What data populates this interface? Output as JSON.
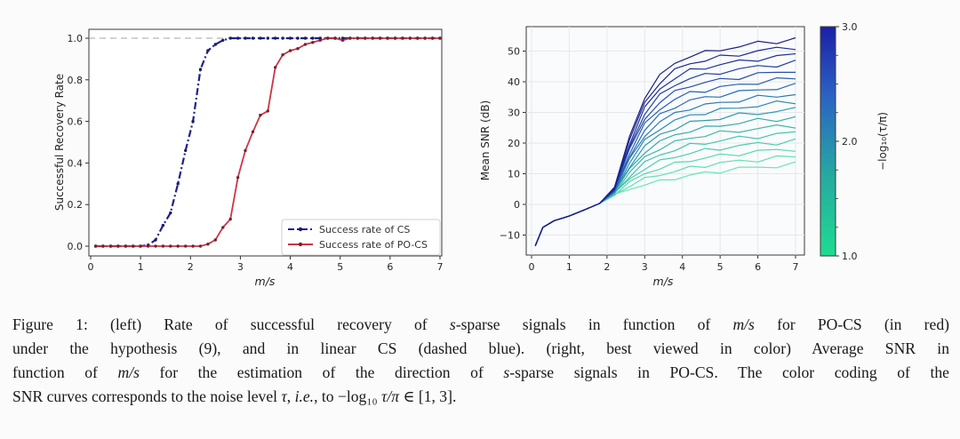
{
  "figure": {
    "caption_lines": [
      [
        {
          "t": "Figure 1:  (left) Rate of successful recovery of "
        },
        {
          "t": "s",
          "i": 1
        },
        {
          "t": "-sparse signals in function of "
        },
        {
          "t": "m/s",
          "i": 1
        },
        {
          "t": " for PO-CS (in red)"
        }
      ],
      [
        {
          "t": "under the hypothesis (9), and in linear CS (dashed blue).  (right, best viewed in color) Average SNR in"
        }
      ],
      [
        {
          "t": "function of "
        },
        {
          "t": "m/s",
          "i": 1
        },
        {
          "t": " for the estimation of the direction of "
        },
        {
          "t": "s",
          "i": 1
        },
        {
          "t": "-sparse signals in PO-CS. The color coding of the"
        }
      ],
      [
        {
          "t": "SNR curves corresponds to the noise level "
        },
        {
          "t": "τ",
          "i": 1
        },
        {
          "t": ", "
        },
        {
          "t": "i.e.",
          "i": 1
        },
        {
          "t": ", to −log₁₀ "
        },
        {
          "t": "τ/π",
          "i": 1
        },
        {
          "t": " ∈ [1, 3]."
        }
      ]
    ]
  },
  "chart_data": [
    {
      "type": "line",
      "panel": "left",
      "title": "",
      "xlabel": "m/s",
      "ylabel": "Successful Recovery Rate",
      "xlim": [
        0,
        7
      ],
      "ylim": [
        -0.045,
        1.045
      ],
      "xticks": [
        0,
        1,
        2,
        3,
        4,
        5,
        6,
        7
      ],
      "xtick_labels": [
        "0",
        "1",
        "2",
        "3",
        "4",
        "5",
        "6",
        "7"
      ],
      "yticks": [
        0.0,
        0.2,
        0.4,
        0.6,
        0.8,
        1.0
      ],
      "ytick_labels": [
        "0.0",
        "0.2",
        "0.4",
        "0.6",
        "0.8",
        "1.0"
      ],
      "grid": false,
      "reference_line": {
        "y": 1.0,
        "color": "#b3b3b3",
        "style": "dashed"
      },
      "legend": {
        "position": "lower-right",
        "entries": [
          "Success rate of CS",
          "Success rate of PO-CS"
        ]
      },
      "x": [
        0.1,
        0.25,
        0.4,
        0.55,
        0.7,
        0.85,
        1.0,
        1.15,
        1.3,
        1.45,
        1.6,
        1.75,
        1.9,
        2.05,
        2.2,
        2.35,
        2.5,
        2.65,
        2.8,
        2.95,
        3.1,
        3.25,
        3.4,
        3.55,
        3.7,
        3.85,
        4.0,
        4.15,
        4.3,
        4.45,
        4.6,
        4.75,
        4.9,
        5.05,
        5.2,
        5.35,
        5.5,
        5.65,
        5.8,
        5.95,
        6.1,
        6.25,
        6.4,
        6.55,
        6.7,
        6.85,
        7.0
      ],
      "series": [
        {
          "name": "Success rate of CS",
          "color": "#20208c",
          "marker_color": "#1b1b6e",
          "linestyle": "dashdot",
          "y": [
            0,
            0,
            0,
            0,
            0,
            0,
            0,
            0.005,
            0.03,
            0.1,
            0.16,
            0.3,
            0.46,
            0.6,
            0.85,
            0.94,
            0.97,
            0.99,
            1,
            1,
            1,
            1,
            1,
            1,
            1,
            1,
            1,
            1,
            1,
            1,
            1,
            1,
            1,
            1,
            1,
            1,
            1,
            1,
            1,
            1,
            1,
            1,
            1,
            1,
            1,
            1,
            1
          ]
        },
        {
          "name": "Success rate of PO-CS",
          "color": "#cc3545",
          "marker_color": "#6e2530",
          "linestyle": "solid",
          "y": [
            0,
            0,
            0,
            0,
            0,
            0,
            0,
            0,
            0,
            0,
            0,
            0,
            0,
            0,
            0,
            0.01,
            0.03,
            0.09,
            0.13,
            0.33,
            0.46,
            0.55,
            0.63,
            0.65,
            0.86,
            0.92,
            0.94,
            0.95,
            0.97,
            0.98,
            0.99,
            1,
            1,
            0.99,
            1,
            1,
            1,
            1,
            1,
            1,
            1,
            1,
            1,
            1,
            1,
            1,
            1
          ]
        }
      ]
    },
    {
      "type": "line",
      "panel": "right",
      "title": "",
      "xlabel": "m/s",
      "ylabel": "Mean SNR (dB)",
      "xlim": [
        -0.15,
        7.25
      ],
      "ylim": [
        -16.5,
        58
      ],
      "xticks": [
        0,
        1,
        2,
        3,
        4,
        5,
        6,
        7
      ],
      "xtick_labels": [
        "0",
        "1",
        "2",
        "3",
        "4",
        "5",
        "6",
        "7"
      ],
      "yticks": [
        -10,
        0,
        10,
        20,
        30,
        40,
        50
      ],
      "ytick_labels": [
        "−10",
        "0",
        "10",
        "20",
        "30",
        "40",
        "50"
      ],
      "grid": true,
      "colorbar": {
        "label": "−log₁₀(τ/π)",
        "min": 1.0,
        "max": 3.0,
        "major_ticks": [
          1.0,
          2.0,
          3.0
        ],
        "tick_labels": [
          "1.0",
          "2.0",
          "3.0"
        ],
        "minor_ticks": [
          1.25,
          1.5,
          1.75,
          2.25,
          2.5,
          2.75
        ],
        "stops": [
          {
            "v": 1.0,
            "color": "#1edc90"
          },
          {
            "v": 1.7,
            "color": "#26a9a2"
          },
          {
            "v": 2.4,
            "color": "#2b62c4"
          },
          {
            "v": 3.0,
            "color": "#1b1fa6"
          }
        ]
      },
      "x": [
        0.1,
        0.3,
        0.6,
        1.0,
        1.4,
        1.8,
        2.2,
        2.6,
        3.0,
        3.4,
        3.8,
        4.2,
        4.6,
        5.0,
        5.5,
        6.0,
        6.5,
        7.0
      ],
      "series": [
        {
          "c": 1.0,
          "y": [
            -13.5,
            -7.5,
            -5.3,
            -3.8,
            -1.8,
            0.3,
            3.0,
            5.0,
            6.5,
            7.5,
            8.5,
            9.5,
            10.2,
            10.9,
            11.6,
            12.1,
            12.6,
            13.0
          ]
        },
        {
          "c": 1.125,
          "y": [
            -13.5,
            -7.5,
            -5.3,
            -3.8,
            -1.8,
            0.3,
            3.2,
            6.1,
            8.3,
            9.7,
            10.8,
            11.9,
            12.7,
            13.4,
            14.1,
            14.6,
            15.1,
            15.6
          ]
        },
        {
          "c": 1.25,
          "y": [
            -13.5,
            -7.5,
            -5.3,
            -3.8,
            -1.8,
            0.3,
            3.3,
            7.1,
            10.1,
            11.8,
            13.2,
            14.4,
            15.1,
            15.9,
            16.6,
            17.2,
            17.7,
            18.1
          ]
        },
        {
          "c": 1.375,
          "y": [
            -13.5,
            -7.5,
            -5.3,
            -3.8,
            -1.8,
            0.3,
            3.5,
            8.2,
            11.8,
            14.0,
            15.5,
            16.8,
            17.6,
            18.3,
            19.1,
            19.7,
            20.2,
            20.7
          ]
        },
        {
          "c": 1.5,
          "y": [
            -13.5,
            -7.5,
            -5.3,
            -3.8,
            -1.8,
            0.3,
            3.6,
            9.3,
            13.6,
            16.1,
            17.9,
            19.3,
            20.0,
            20.8,
            21.6,
            22.2,
            22.8,
            23.3
          ]
        },
        {
          "c": 1.625,
          "y": [
            -13.5,
            -7.5,
            -5.3,
            -3.8,
            -1.8,
            0.3,
            3.8,
            10.3,
            15.4,
            18.3,
            20.2,
            21.7,
            22.5,
            23.3,
            24.1,
            24.7,
            25.3,
            25.8
          ]
        },
        {
          "c": 1.75,
          "y": [
            -13.5,
            -7.5,
            -5.3,
            -3.8,
            -1.8,
            0.3,
            3.9,
            11.4,
            17.2,
            20.4,
            22.6,
            24.1,
            24.9,
            25.8,
            26.6,
            27.3,
            27.8,
            28.4
          ]
        },
        {
          "c": 1.875,
          "y": [
            -13.5,
            -7.5,
            -5.3,
            -3.8,
            -1.8,
            0.3,
            4.1,
            12.4,
            19.0,
            22.6,
            24.9,
            26.6,
            27.4,
            28.2,
            29.1,
            29.8,
            30.4,
            30.9
          ]
        },
        {
          "c": 2.0,
          "y": [
            -13.5,
            -7.5,
            -5.3,
            -3.8,
            -1.8,
            0.3,
            4.3,
            13.5,
            20.8,
            24.8,
            27.3,
            29.0,
            29.9,
            30.7,
            31.6,
            32.3,
            32.9,
            33.5
          ]
        },
        {
          "c": 2.125,
          "y": [
            -13.5,
            -7.5,
            -5.3,
            -3.8,
            -1.8,
            0.3,
            4.4,
            14.6,
            22.5,
            26.9,
            29.6,
            31.4,
            32.3,
            33.2,
            34.0,
            34.8,
            35.4,
            36.1
          ]
        },
        {
          "c": 2.25,
          "y": [
            -13.5,
            -7.5,
            -5.3,
            -3.8,
            -1.8,
            0.3,
            4.6,
            15.6,
            24.3,
            29.1,
            31.9,
            33.9,
            34.8,
            35.7,
            36.5,
            37.4,
            38.0,
            38.6
          ]
        },
        {
          "c": 2.375,
          "y": [
            -13.5,
            -7.5,
            -5.3,
            -3.8,
            -1.8,
            0.3,
            4.7,
            16.7,
            26.1,
            31.2,
            34.3,
            36.3,
            37.2,
            38.1,
            39.0,
            39.9,
            40.5,
            41.2
          ]
        },
        {
          "c": 2.5,
          "y": [
            -13.5,
            -7.5,
            -5.3,
            -3.8,
            -1.8,
            0.3,
            4.9,
            17.8,
            27.9,
            33.4,
            36.6,
            38.8,
            39.7,
            40.6,
            41.5,
            42.4,
            43.0,
            43.8
          ]
        },
        {
          "c": 2.625,
          "y": [
            -13.5,
            -7.5,
            -5.3,
            -3.8,
            -1.8,
            0.3,
            5.0,
            18.8,
            29.7,
            35.5,
            39.0,
            41.2,
            42.1,
            43.1,
            44.0,
            44.9,
            45.6,
            46.3
          ]
        },
        {
          "c": 2.75,
          "y": [
            -13.5,
            -7.5,
            -5.3,
            -3.8,
            -1.8,
            0.3,
            5.2,
            19.9,
            31.4,
            37.7,
            41.3,
            43.6,
            44.6,
            45.6,
            46.5,
            47.5,
            48.1,
            48.9
          ]
        },
        {
          "c": 2.875,
          "y": [
            -13.5,
            -7.5,
            -5.3,
            -3.8,
            -1.8,
            0.3,
            5.3,
            20.9,
            33.2,
            39.8,
            43.7,
            46.1,
            47.0,
            48.0,
            49.0,
            50.0,
            50.7,
            51.4
          ]
        },
        {
          "c": 3.0,
          "y": [
            -13.5,
            -7.5,
            -5.3,
            -3.8,
            -1.8,
            0.3,
            5.5,
            22.0,
            35.0,
            42.0,
            46.0,
            48.5,
            49.5,
            50.5,
            51.5,
            52.5,
            53.2,
            54.0
          ]
        }
      ]
    }
  ]
}
